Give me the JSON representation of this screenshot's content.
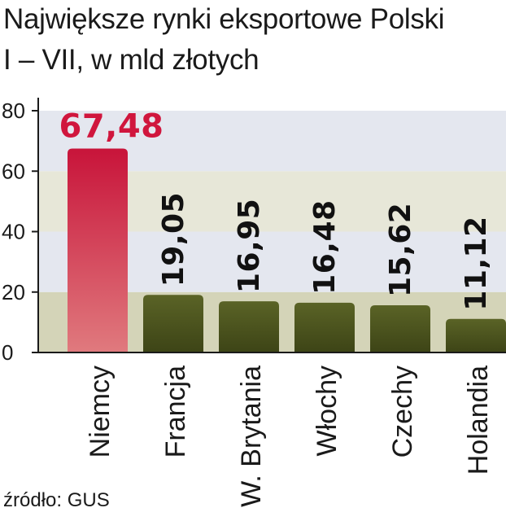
{
  "title": "Największe rynki eksportowe Polski",
  "subtitle": "I – VII, w mld złotych",
  "source": "źródło: GUS",
  "colors": {
    "highlight_bar_top": "#c8143a",
    "highlight_bar_bottom": "#e07a7e",
    "bar_top": "#5a6326",
    "bar_bottom": "#3d4416",
    "band_light": "#e4e7ef",
    "band_olive": "#d4d4b8",
    "highlight_label": "#d0163d"
  },
  "chart_data": {
    "type": "bar",
    "categories": [
      "Niemcy",
      "Francja",
      "W. Brytania",
      "Włochy",
      "Czechy",
      "Holandia"
    ],
    "values": [
      67.48,
      19.05,
      16.95,
      16.48,
      15.62,
      11.12
    ],
    "value_labels": [
      "67,48",
      "19,05",
      "16,95",
      "16,48",
      "15,62",
      "11,12"
    ],
    "highlight_index": 0,
    "title": "Największe rynki eksportowe Polski",
    "subtitle": "I – VII, w mld złotych",
    "xlabel": "",
    "ylabel": "",
    "ylim": [
      0,
      80
    ],
    "yticks": [
      0,
      20,
      40,
      60,
      80
    ],
    "grid": false,
    "bands": "alternating background bands every 20 units"
  }
}
